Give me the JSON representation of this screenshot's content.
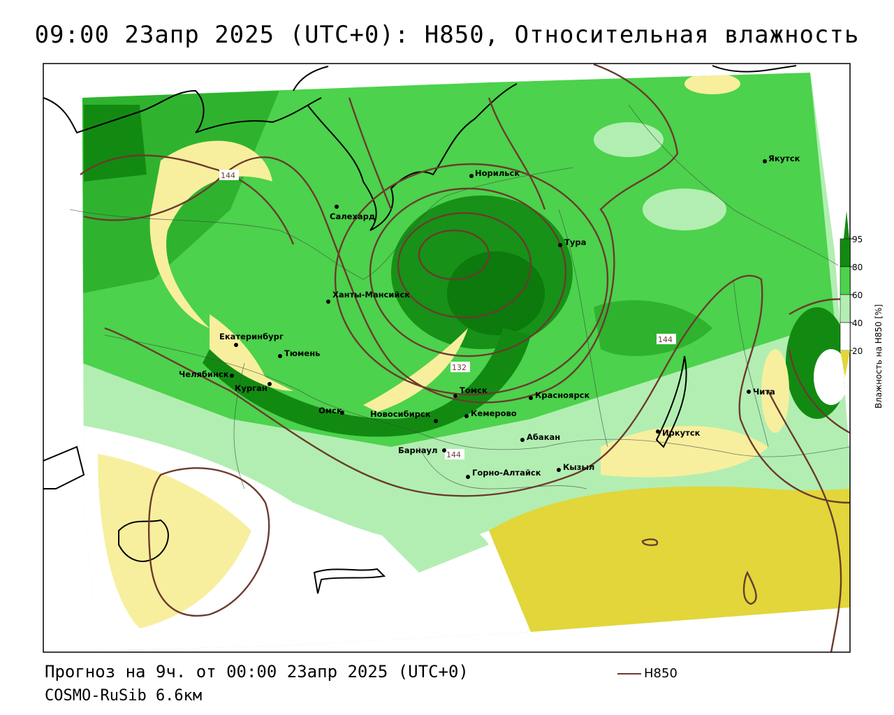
{
  "title": "09:00 23апр 2025 (UTC+0): H850, Относительная влажность",
  "forecast_text": "Прогноз на 9ч. от 00:00 23апр 2025 (UTC+0)",
  "model_text": "COSMO-RuSib 6.6км",
  "line_legend": "H850",
  "colorbar": {
    "label": "Влажность на H850 [%]",
    "ticks": [
      "95",
      "80",
      "60",
      "40",
      "20"
    ],
    "colors": {
      "c95": "#128a12",
      "c80": "#4cd24c",
      "c60": "#b2eeb2",
      "c40": "#ffffff",
      "c20": "#f7ef9e",
      "c0": "#e2d63a"
    }
  },
  "contour_color": "#6b3b2e",
  "contour_labels": [
    "144",
    "132",
    "144",
    "144"
  ],
  "cities": [
    "Норильск",
    "Якутск",
    "Салехард",
    "Тура",
    "Ханты-Мансийск",
    "Екатеринбург",
    "Тюмень",
    "Челябинск",
    "Курган",
    "Омск",
    "Новосибирск",
    "Томск",
    "Кемерово",
    "Красноярск",
    "Абакан",
    "Барнаул",
    "Горно-Алтайск",
    "Кызыл",
    "Иркутск",
    "Чита"
  ]
}
